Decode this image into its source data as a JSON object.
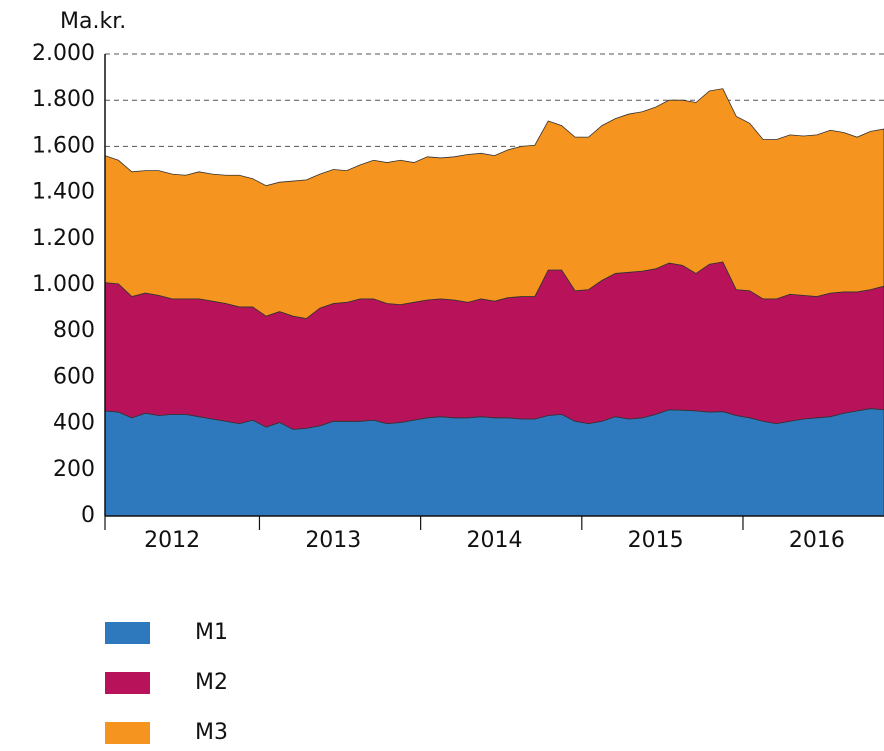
{
  "chart_data": {
    "type": "area",
    "stacked": true,
    "y_label": "Ma.kr.",
    "categories": [
      null,
      null,
      null,
      null,
      null,
      "2012",
      null,
      null,
      null,
      null,
      null,
      null,
      null,
      null,
      null,
      null,
      null,
      "2013",
      null,
      null,
      null,
      null,
      null,
      null,
      null,
      null,
      null,
      null,
      null,
      "2014",
      null,
      null,
      null,
      null,
      null,
      null,
      null,
      null,
      null,
      null,
      null,
      "2015",
      null,
      null,
      null,
      null,
      null,
      null,
      null,
      null,
      null,
      null,
      null,
      "2016",
      null,
      null,
      null,
      null,
      null
    ],
    "series": [
      {
        "name": "M1",
        "color": "#2e78be",
        "values": [
          455,
          450,
          425,
          445,
          435,
          440,
          440,
          430,
          420,
          410,
          400,
          415,
          385,
          405,
          375,
          380,
          390,
          410,
          410,
          410,
          415,
          400,
          405,
          415,
          425,
          430,
          425,
          425,
          430,
          425,
          425,
          420,
          420,
          435,
          440,
          410,
          400,
          410,
          430,
          420,
          425,
          440,
          460,
          458,
          455,
          450,
          452,
          435,
          425,
          410,
          400,
          410,
          420,
          425,
          430,
          445,
          455,
          465,
          460
        ]
      },
      {
        "name": "M2",
        "color": "#b8135a",
        "values": [
          555,
          555,
          525,
          520,
          520,
          500,
          500,
          510,
          510,
          510,
          505,
          490,
          480,
          480,
          490,
          475,
          510,
          510,
          515,
          530,
          525,
          520,
          510,
          510,
          510,
          510,
          510,
          500,
          510,
          505,
          520,
          530,
          530,
          630,
          625,
          565,
          580,
          610,
          620,
          635,
          635,
          630,
          635,
          627,
          595,
          640,
          648,
          545,
          550,
          530,
          540,
          550,
          535,
          525,
          535,
          525,
          515,
          515,
          535
        ]
      },
      {
        "name": "M3",
        "color": "#f5941e",
        "values": [
          550,
          535,
          540,
          530,
          540,
          540,
          535,
          550,
          550,
          555,
          570,
          555,
          565,
          560,
          585,
          600,
          580,
          580,
          570,
          580,
          600,
          610,
          625,
          605,
          620,
          610,
          620,
          640,
          630,
          630,
          640,
          650,
          655,
          645,
          625,
          665,
          660,
          670,
          670,
          685,
          690,
          700,
          705,
          715,
          740,
          750,
          750,
          750,
          725,
          690,
          690,
          690,
          690,
          700,
          705,
          690,
          670,
          685,
          680
        ]
      }
    ],
    "ylim": [
      0,
      2000
    ],
    "yticks": [
      0,
      200,
      400,
      600,
      800,
      {
        "value": 1000,
        "label": "1.000"
      },
      {
        "value": 1200,
        "label": "1.200"
      },
      {
        "value": 1400,
        "label": "1.400"
      },
      {
        "value": 1600,
        "label": "1.600"
      },
      {
        "value": 1800,
        "label": "1.800"
      },
      {
        "value": 2000,
        "label": "2.000"
      }
    ],
    "grid": true
  }
}
